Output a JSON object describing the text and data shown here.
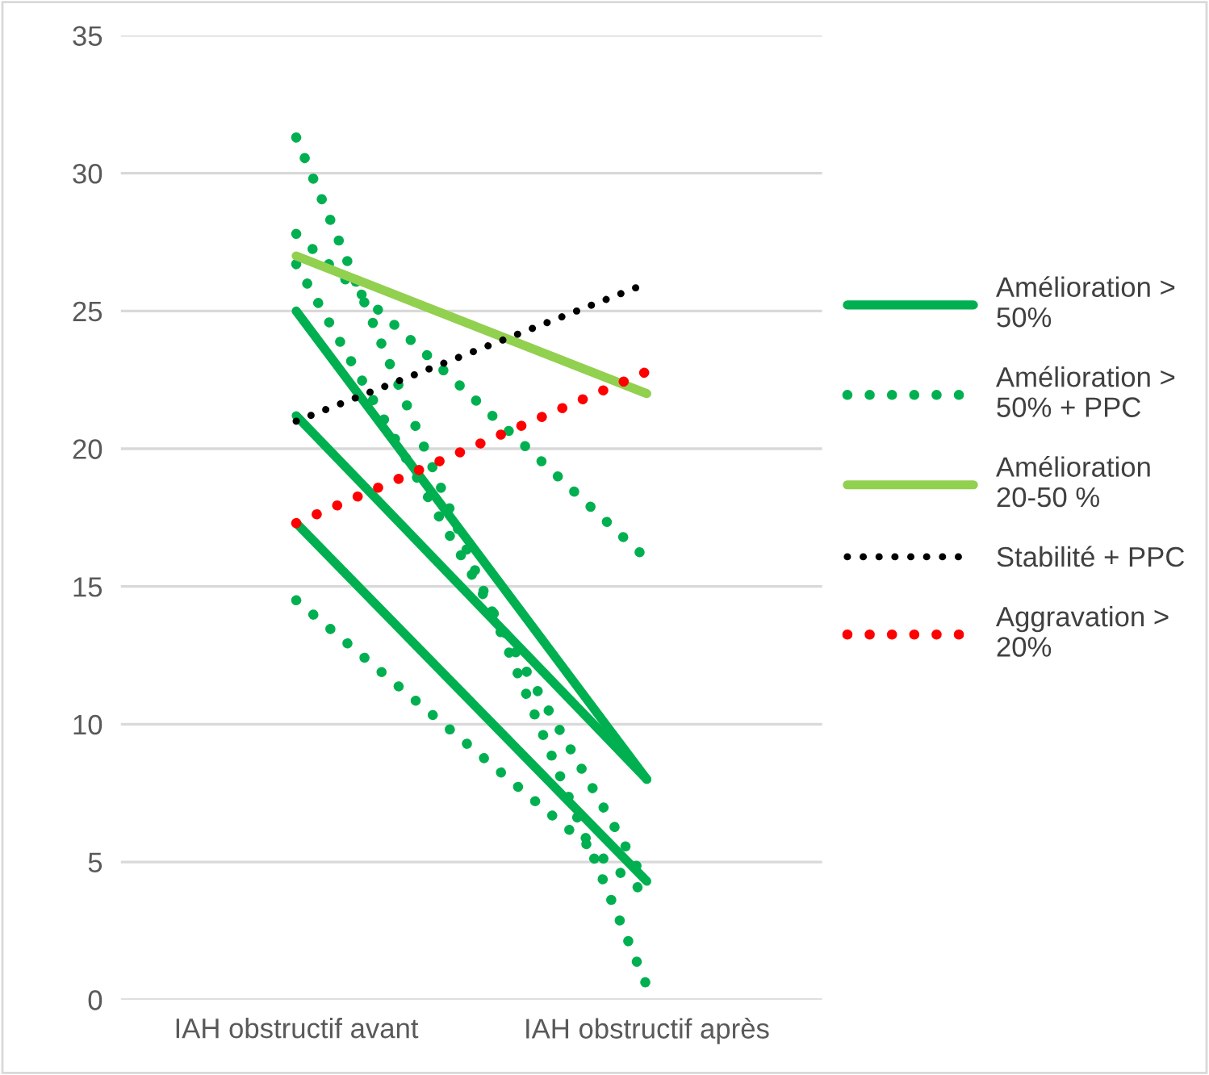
{
  "chart_data": {
    "type": "line",
    "categories": [
      "IAH obstructif avant",
      "IAH obstructif après"
    ],
    "ylim": [
      0,
      35
    ],
    "yticks": [
      0,
      5,
      10,
      15,
      20,
      25,
      30,
      35
    ],
    "grid": "y",
    "legend": "right",
    "marker": "none",
    "series": [
      {
        "name": "Amélioration >\n50%",
        "color": "#00b050",
        "line_style": "solid",
        "values": [
          25,
          8
        ]
      },
      {
        "color": "#00b050",
        "line_style": "solid",
        "values": [
          21.2,
          8
        ]
      },
      {
        "color": "#00b050",
        "line_style": "solid",
        "values": [
          17.3,
          4.3
        ]
      },
      {
        "name": "Amélioration >\n50% + PPC",
        "color": "#00b050",
        "line_style": "dotted",
        "values": [
          31.3,
          0.5
        ]
      },
      {
        "color": "#00b050",
        "line_style": "dotted",
        "values": [
          27.8,
          16
        ]
      },
      {
        "color": "#00b050",
        "line_style": "dotted",
        "values": [
          26.7,
          4.2
        ]
      },
      {
        "color": "#00b050",
        "line_style": "dotted",
        "values": [
          14.5,
          3.8
        ]
      },
      {
        "name": "Amélioration\n20-50 %",
        "color": "#92d050",
        "line_style": "solid",
        "values": [
          27,
          22
        ]
      },
      {
        "name": "Stabilité + PPC",
        "color": "#000000",
        "line_style": "dotted",
        "values": [
          21,
          26
        ]
      },
      {
        "name": "Aggravation >\n20%",
        "color": "#ff0000",
        "line_style": "dotted",
        "values": [
          17.3,
          22.8
        ]
      }
    ]
  }
}
